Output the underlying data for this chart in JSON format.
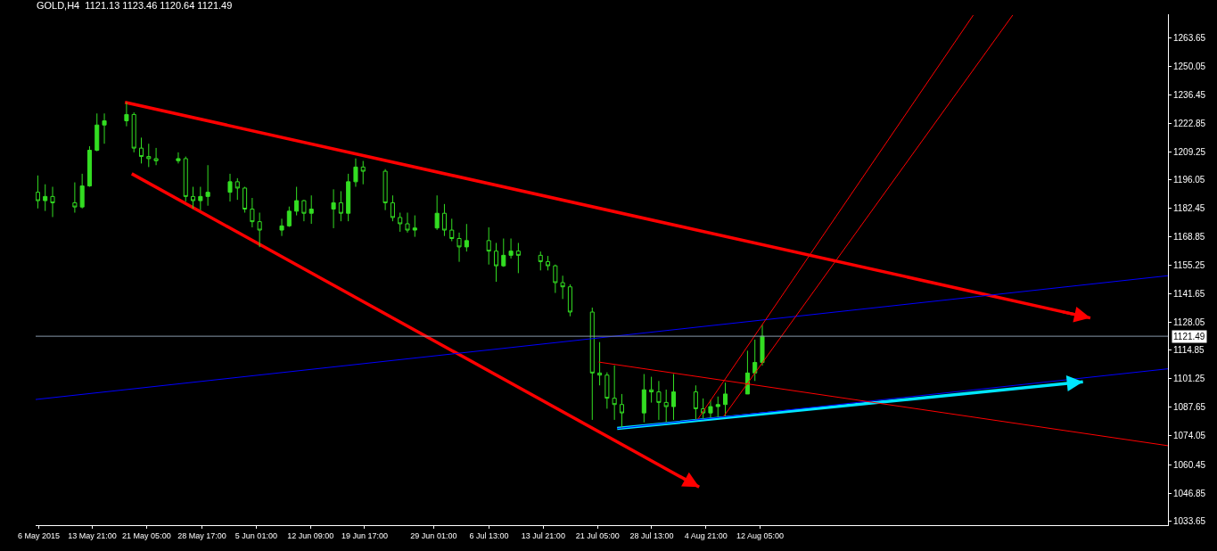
{
  "chart_data": {
    "type": "candlestick",
    "title": "GOLD,H4  1121.13 1123.46 1120.64 1121.49",
    "series": [
      {
        "color": "#33dd22",
        "x": [
          "2015-05-06T12:00",
          "2015-05-07T12:00",
          "2015-05-08T12:00",
          "2015-05-11T12:00",
          "2015-05-12T12:00",
          "2015-05-13T12:00",
          "2015-05-14T12:00",
          "2015-05-15T12:00",
          "2015-05-18T12:00",
          "2015-05-19T12:00",
          "2015-05-20T12:00",
          "2015-05-21T12:00",
          "2015-05-22T12:00",
          "2015-05-25T12:00",
          "2015-05-26T12:00",
          "2015-05-27T12:00",
          "2015-05-28T12:00",
          "2015-05-29T12:00",
          "2015-06-01T12:00",
          "2015-06-02T12:00",
          "2015-06-03T12:00",
          "2015-06-04T12:00",
          "2015-06-05T12:00",
          "2015-06-08T12:00",
          "2015-06-09T12:00",
          "2015-06-10T12:00",
          "2015-06-11T12:00",
          "2015-06-12T12:00",
          "2015-06-15T12:00",
          "2015-06-16T12:00",
          "2015-06-17T12:00",
          "2015-06-18T12:00",
          "2015-06-19T12:00",
          "2015-06-22T12:00",
          "2015-06-23T12:00",
          "2015-06-24T12:00",
          "2015-06-25T12:00",
          "2015-06-26T12:00",
          "2015-06-29T12:00",
          "2015-06-30T12:00",
          "2015-07-01T12:00",
          "2015-07-02T12:00",
          "2015-07-03T12:00",
          "2015-07-06T12:00",
          "2015-07-07T12:00",
          "2015-07-08T12:00",
          "2015-07-09T12:00",
          "2015-07-10T12:00",
          "2015-07-13T12:00",
          "2015-07-14T12:00",
          "2015-07-15T12:00",
          "2015-07-16T12:00",
          "2015-07-17T12:00",
          "2015-07-20T12:00",
          "2015-07-21T12:00",
          "2015-07-22T12:00",
          "2015-07-23T12:00",
          "2015-07-24T12:00",
          "2015-07-27T12:00",
          "2015-07-28T12:00",
          "2015-07-29T12:00",
          "2015-07-30T12:00",
          "2015-07-31T12:00",
          "2015-08-03T12:00",
          "2015-08-04T12:00",
          "2015-08-05T12:00",
          "2015-08-06T12:00",
          "2015-08-07T12:00",
          "2015-08-10T12:00",
          "2015-08-11T12:00",
          "2015-08-12T12:00"
        ],
        "ohlc": [
          [
            1190,
            1198.0,
            1182.3,
            1186
          ],
          [
            1186,
            1193.8,
            1181.1,
            1188
          ],
          [
            1188,
            1192.6,
            1178.2,
            1185
          ],
          [
            1185,
            1194.7,
            1180.3,
            1183
          ],
          [
            1183,
            1198.8,
            1182.3,
            1193
          ],
          [
            1193,
            1211.9,
            1192.6,
            1210
          ],
          [
            1210,
            1227.5,
            1209.5,
            1222
          ],
          [
            1222,
            1227.5,
            1213.1,
            1224
          ],
          [
            1224,
            1232.8,
            1221.4,
            1227
          ],
          [
            1227,
            1228.0,
            1209.0,
            1211
          ],
          [
            1211,
            1216.0,
            1203.7,
            1207
          ],
          [
            1207,
            1213.1,
            1202.0,
            1206
          ],
          [
            1206,
            1211.1,
            1202.9,
            1205
          ],
          [
            1205,
            1209.0,
            1203.7,
            1206
          ],
          [
            1206,
            1207.0,
            1185.6,
            1188
          ],
          [
            1188,
            1192.6,
            1182.3,
            1186
          ],
          [
            1186,
            1192.6,
            1181.5,
            1188
          ],
          [
            1188,
            1202.9,
            1183.6,
            1190
          ],
          [
            1190,
            1198.8,
            1185.6,
            1195
          ],
          [
            1195,
            1196.7,
            1186.4,
            1192
          ],
          [
            1192,
            1192.6,
            1180.3,
            1182
          ],
          [
            1182,
            1187.3,
            1173.3,
            1176
          ],
          [
            1176,
            1180.3,
            1163.9,
            1172
          ],
          [
            1172,
            1177.4,
            1169.2,
            1174
          ],
          [
            1174,
            1183.2,
            1173.5,
            1181
          ],
          [
            1181,
            1192.6,
            1179.0,
            1186
          ],
          [
            1186,
            1186.4,
            1176.2,
            1180
          ],
          [
            1180,
            1188.5,
            1175.0,
            1182
          ],
          [
            1182,
            1191.4,
            1172.9,
            1185
          ],
          [
            1185,
            1190.5,
            1176.2,
            1180
          ],
          [
            1180,
            1198.8,
            1176.2,
            1195
          ],
          [
            1195,
            1206.1,
            1192.6,
            1202
          ],
          [
            1202,
            1204.9,
            1193.8,
            1200
          ],
          [
            1200,
            1201.0,
            1181.5,
            1185
          ],
          [
            1185,
            1188.5,
            1176.2,
            1178
          ],
          [
            1178,
            1180.3,
            1171.2,
            1175
          ],
          [
            1175,
            1180.3,
            1170.8,
            1172
          ],
          [
            1172,
            1179.0,
            1168.8,
            1173
          ],
          [
            1173,
            1188.5,
            1172.1,
            1180
          ],
          [
            1180,
            1184.4,
            1169.2,
            1172
          ],
          [
            1172,
            1177.4,
            1166.7,
            1168
          ],
          [
            1168,
            1170.8,
            1156.9,
            1164
          ],
          [
            1164,
            1174.9,
            1161.8,
            1167
          ],
          [
            1167,
            1173.3,
            1155.6,
            1162
          ],
          [
            1162,
            1165.9,
            1147.4,
            1155
          ],
          [
            1155,
            1168.0,
            1154.5,
            1160
          ],
          [
            1160,
            1168.0,
            1158.5,
            1162
          ],
          [
            1162,
            1165.9,
            1151.5,
            1160
          ],
          [
            1160,
            1161.8,
            1152.8,
            1157
          ],
          [
            1157,
            1159.7,
            1152.8,
            1155
          ],
          [
            1155,
            1155.6,
            1142.1,
            1147
          ],
          [
            1147,
            1150.3,
            1139.2,
            1145
          ],
          [
            1145,
            1146.2,
            1131.0,
            1133
          ],
          [
            1133,
            1135.1,
            1081.7,
            1104
          ],
          [
            1104,
            1118.7,
            1098.1,
            1103
          ],
          [
            1103,
            1104.3,
            1087.0,
            1092
          ],
          [
            1092,
            1107.6,
            1081.7,
            1089
          ],
          [
            1089,
            1094.0,
            1077.6,
            1085
          ],
          [
            1085,
            1103.5,
            1080.5,
            1096
          ],
          [
            1096,
            1102.2,
            1089.9,
            1095
          ],
          [
            1095,
            1100.2,
            1081.7,
            1090
          ],
          [
            1090,
            1096.1,
            1080.5,
            1088
          ],
          [
            1088,
            1103.5,
            1081.7,
            1095
          ],
          [
            1095,
            1098.1,
            1081.7,
            1087
          ],
          [
            1087,
            1091.9,
            1081.7,
            1085
          ],
          [
            1085,
            1091.2,
            1082.9,
            1088
          ],
          [
            1088,
            1092.8,
            1082.5,
            1089
          ],
          [
            1089,
            1099.4,
            1082.9,
            1094
          ],
          [
            1094,
            1114.6,
            1094.0,
            1104
          ],
          [
            1104,
            1119.9,
            1100.2,
            1109
          ],
          [
            1109,
            1126.9,
            1107.5,
            1121.49
          ]
        ]
      },
      {
        "type": "line",
        "color": "#0000ff",
        "x": [
          "2015-05-06T05:00",
          "2015-10-06T09:00"
        ],
        "values": [
          1091.4,
          1150.3
        ]
      },
      {
        "type": "line",
        "color": "#0000ff",
        "x": [
          "2015-07-23T21:00",
          "2015-10-06T09:00"
        ],
        "values": [
          1077.6,
          1106.0
        ]
      },
      {
        "type": "line",
        "color": "#ff0000",
        "x": [
          "2015-07-21T09:00",
          "2015-10-06T09:00"
        ],
        "values": [
          1109.2,
          1069.4
        ]
      },
      {
        "type": "line",
        "color": "#ff0000",
        "x": [
          "2015-08-03T19:00",
          "2015-09-10T01:00"
        ],
        "values": [
          1082.1,
          1274.3
        ]
      },
      {
        "type": "line",
        "color": "#ff0000",
        "x": [
          "2015-08-07T07:00",
          "2015-09-15T09:00"
        ],
        "values": [
          1083.4,
          1274.3
        ]
      }
    ],
    "ref_lines": [
      {
        "axis": "y",
        "value": 1121.49,
        "label": "1121.49",
        "color": "#8899aa"
      }
    ],
    "xlim": [
      "2015-05-06T05:00",
      "2015-10-06T09:00"
    ],
    "xticks": [
      {
        "value": "2015-05-06T15:00",
        "label": "6 May 2015"
      },
      {
        "value": "2015-05-13T21:00",
        "label": "13 May 21:00"
      },
      {
        "value": "2015-05-21T05:00",
        "label": "21 May 05:00"
      },
      {
        "value": "2015-05-28T17:00",
        "label": "28 May 17:00"
      },
      {
        "value": "2015-06-05T01:00",
        "label": "5 Jun 01:00"
      },
      {
        "value": "2015-06-12T09:00",
        "label": "12 Jun 09:00"
      },
      {
        "value": "2015-06-19T17:00",
        "label": "19 Jun 17:00"
      },
      {
        "value": "2015-06-29T01:00",
        "label": "29 Jun 01:00"
      },
      {
        "value": "2015-07-06T13:00",
        "label": "6 Jul 13:00"
      },
      {
        "value": "2015-07-13T21:00",
        "label": "13 Jul 21:00"
      },
      {
        "value": "2015-07-21T05:00",
        "label": "21 Jul 05:00"
      },
      {
        "value": "2015-07-28T13:00",
        "label": "28 Jul 13:00"
      },
      {
        "value": "2015-08-04T21:00",
        "label": "4 Aug 21:00"
      },
      {
        "value": "2015-08-12T05:00",
        "label": "12 Aug 05:00"
      }
    ],
    "ylim": [
      1031.6,
      1274.7
    ],
    "yticks": [
      1263.65,
      1250.05,
      1236.45,
      1222.85,
      1209.25,
      1196.05,
      1182.45,
      1168.85,
      1155.25,
      1141.65,
      1128.05,
      1114.85,
      1101.25,
      1087.65,
      1074.05,
      1060.45,
      1046.85,
      1033.65
    ],
    "grid": false
  }
}
